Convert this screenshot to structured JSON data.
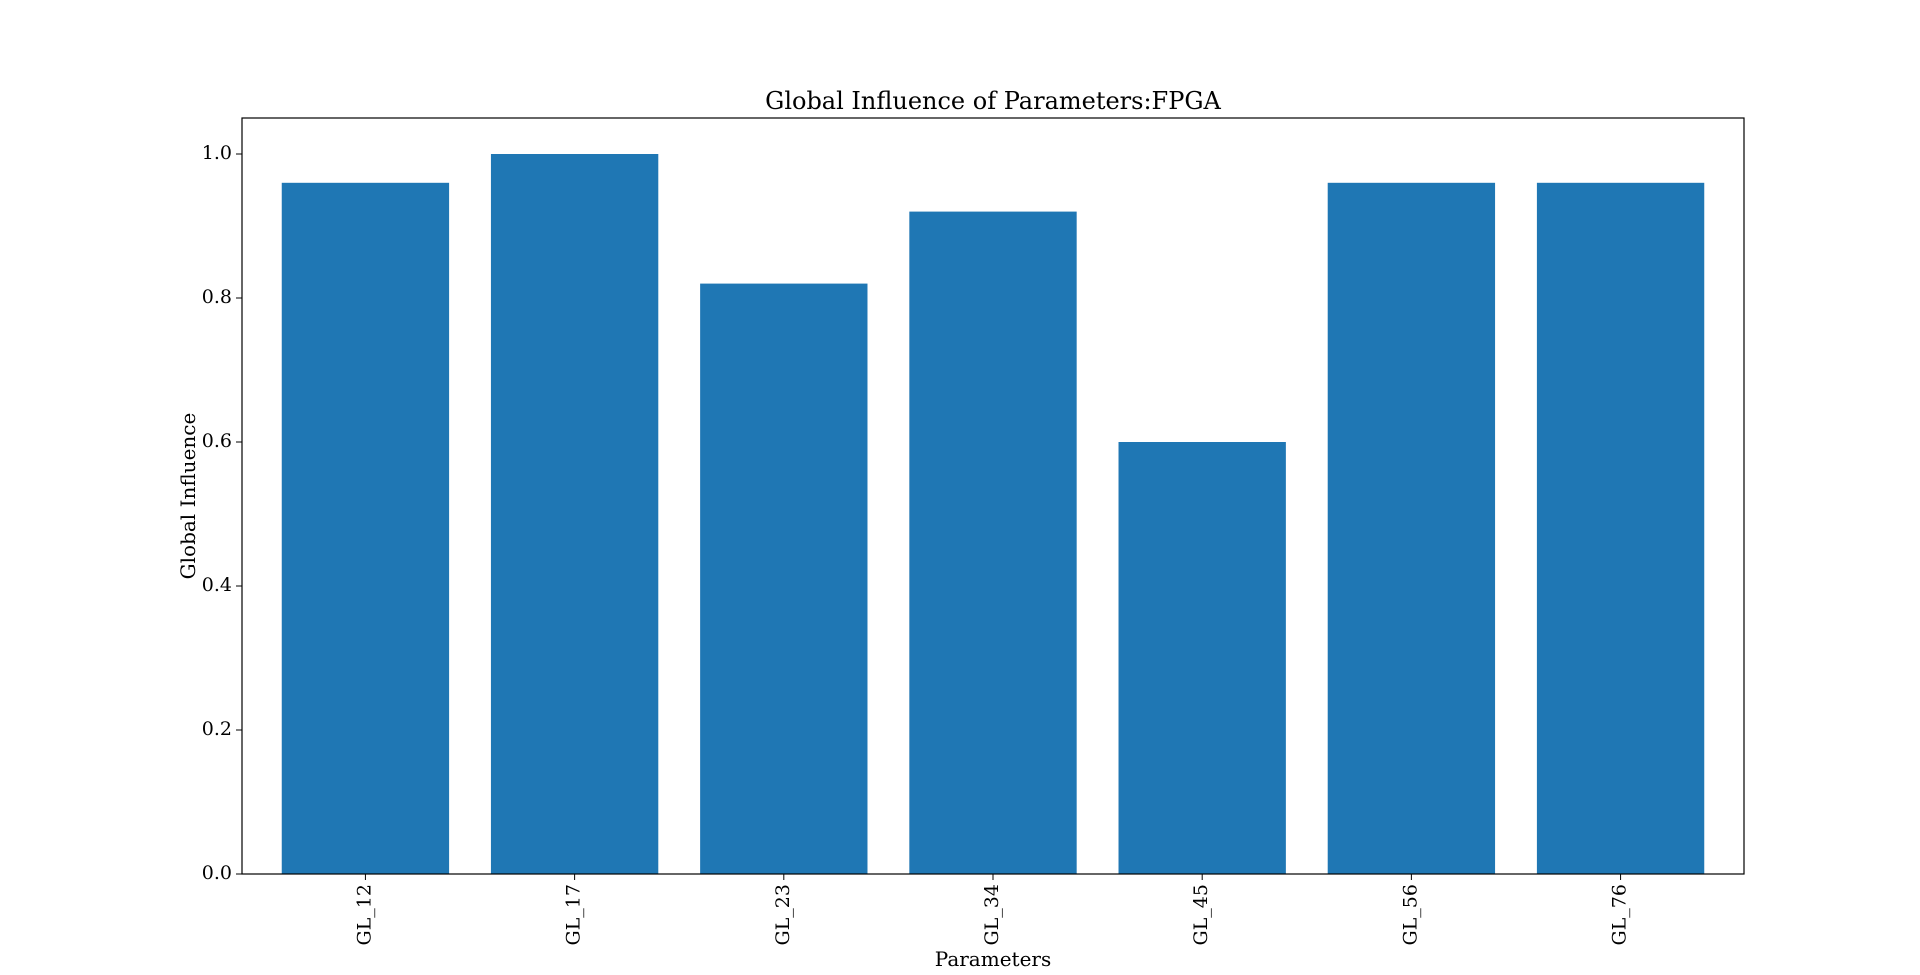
{
  "chart_data": {
    "type": "bar",
    "title": "Global Influence of Parameters:FPGA",
    "xlabel": "Parameters",
    "ylabel": "Global Influence",
    "categories": [
      "GL_12",
      "GL_17",
      "GL_23",
      "GL_34",
      "GL_45",
      "GL_56",
      "GL_76"
    ],
    "values": [
      0.96,
      1.0,
      0.82,
      0.92,
      0.6,
      0.96,
      0.96
    ],
    "ylim": [
      0,
      1.05
    ],
    "yticks": [
      0.0,
      0.2,
      0.4,
      0.6,
      0.8,
      1.0
    ],
    "ytick_labels": [
      "0.0",
      "0.2",
      "0.4",
      "0.6",
      "0.8",
      "1.0"
    ],
    "xtick_rotation": "vertical",
    "bar_color": "#1f77b4",
    "grid": false,
    "legend": "none"
  }
}
